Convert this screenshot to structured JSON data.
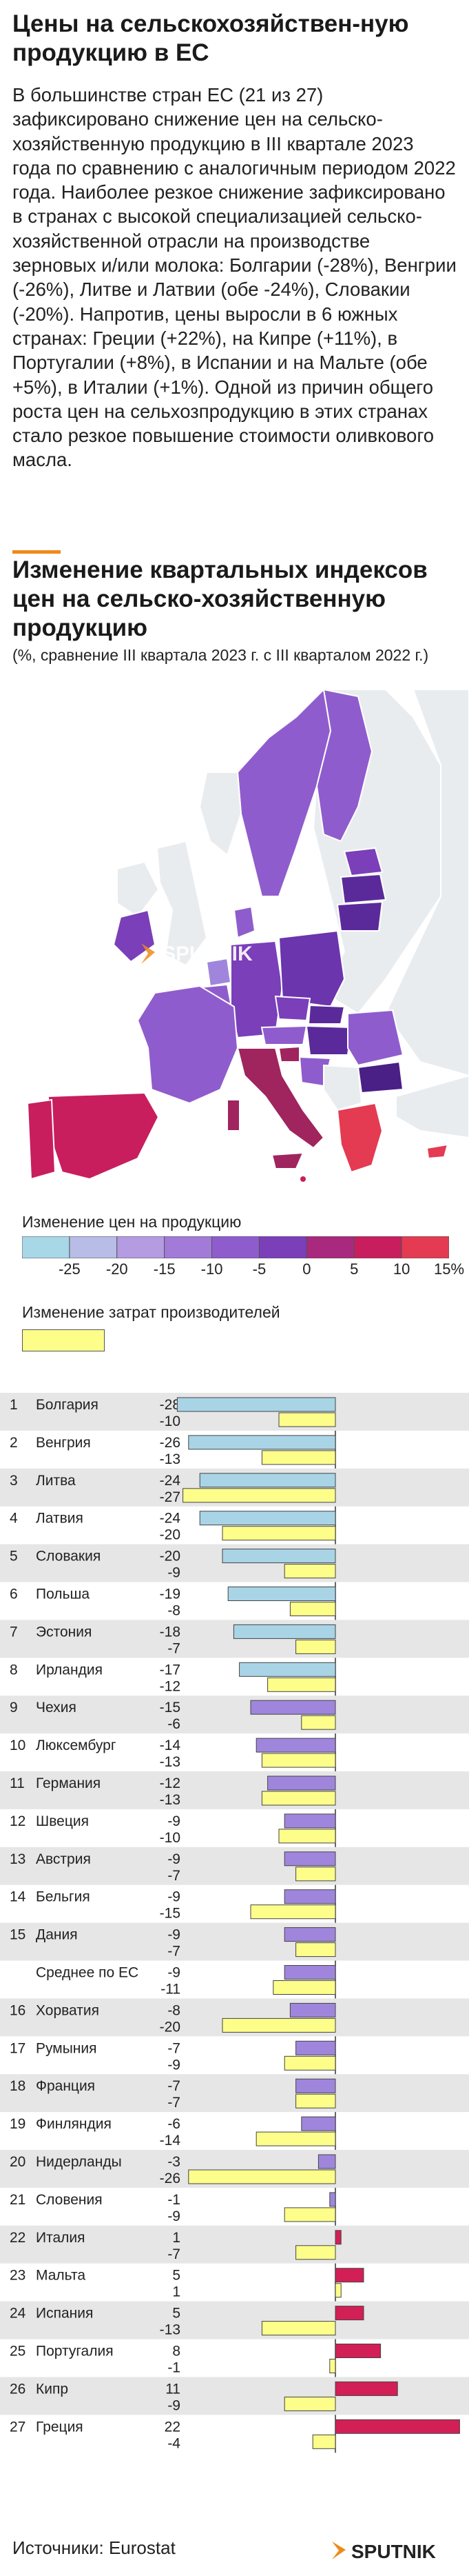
{
  "title": "Цены на сельскохозяйствен-ную продукцию в ЕС",
  "intro": "В большинстве стран ЕС (21 из 27) зафиксировано снижение цен на сельско-хозяйственную продукцию в III квартале 2023 года по сравнению с аналогичным периодом 2022 года. Наиболее резкое снижение зафиксировано в странах с высокой специализацией сельско-хозяйственной отрасли на производстве зерновых и/или молока:  Болгарии (-28%), Венгрии (-26%), Литве и Латвии (обе -24%), Словакии (-20%). Напротив, цены выросли в 6 южных странах: Греции (+22%), на Кипре (+11%), в Португалии (+8%), в Испании и на Мальте (обе +5%), в Италии (+1%). Одной из причин общего роста цен на сельхозпродукцию в этих странах стало резкое повышение стоимости оливкового масла.",
  "chart_title": "Изменение квартальных индексов цен на сельско-хозяйственную продукцию",
  "chart_subtitle": "(%, сравнение III квартала 2023 г. с III кварталом 2022 г.)",
  "watermark": "SPUTNIK",
  "legend": {
    "price_title": "Изменение цен на продукцию",
    "ticks": [
      "-25",
      "-20",
      "-15",
      "-10",
      "-5",
      "0",
      "5",
      "10",
      "15%"
    ],
    "scale_colors": [
      "#a8d8e8",
      "#b7bde6",
      "#b49be2",
      "#a27bd8",
      "#8f5ccd",
      "#7a3fb9",
      "#a9297f",
      "#c81e5e",
      "#e43a52"
    ],
    "cost_title": "Изменение затрат производителей"
  },
  "colors": {
    "price_negative": "#a8d4e6",
    "price_mid": "#9f86dc",
    "price_positive": "#d21f55",
    "cost": "#fdfd8a",
    "baseline": "#333333"
  },
  "chart_data": {
    "type": "bar",
    "orientation": "horizontal",
    "series": [
      {
        "name": "Изменение цен на продукцию"
      },
      {
        "name": "Изменение затрат производителей"
      }
    ],
    "rows": [
      {
        "rank": "1",
        "country": "Болгария",
        "price": -28,
        "cost": -10
      },
      {
        "rank": "2",
        "country": "Венгрия",
        "price": -26,
        "cost": -13
      },
      {
        "rank": "3",
        "country": "Литва",
        "price": -24,
        "cost": -27
      },
      {
        "rank": "4",
        "country": "Латвия",
        "price": -24,
        "cost": -20
      },
      {
        "rank": "5",
        "country": "Словакия",
        "price": -20,
        "cost": -9
      },
      {
        "rank": "6",
        "country": "Польша",
        "price": -19,
        "cost": -8
      },
      {
        "rank": "7",
        "country": "Эстония",
        "price": -18,
        "cost": -7
      },
      {
        "rank": "8",
        "country": "Ирландия",
        "price": -17,
        "cost": -12
      },
      {
        "rank": "9",
        "country": "Чехия",
        "price": -15,
        "cost": -6
      },
      {
        "rank": "10",
        "country": "Люксембург",
        "price": -14,
        "cost": -13
      },
      {
        "rank": "11",
        "country": "Германия",
        "price": -12,
        "cost": -13
      },
      {
        "rank": "12",
        "country": "Швеция",
        "price": -9,
        "cost": -10
      },
      {
        "rank": "13",
        "country": "Австрия",
        "price": -9,
        "cost": -7
      },
      {
        "rank": "14",
        "country": "Бельгия",
        "price": -9,
        "cost": -15
      },
      {
        "rank": "15",
        "country": "Дания",
        "price": -9,
        "cost": -7
      },
      {
        "rank": "",
        "country": "Среднее по ЕС",
        "price": -9,
        "cost": -11
      },
      {
        "rank": "16",
        "country": "Хорватия",
        "price": -8,
        "cost": -20
      },
      {
        "rank": "17",
        "country": "Румыния",
        "price": -7,
        "cost": -9
      },
      {
        "rank": "18",
        "country": "Франция",
        "price": -7,
        "cost": -7
      },
      {
        "rank": "19",
        "country": "Финляндия",
        "price": -6,
        "cost": -14
      },
      {
        "rank": "20",
        "country": "Нидерланды",
        "price": -3,
        "cost": -26
      },
      {
        "rank": "21",
        "country": "Словения",
        "price": -1,
        "cost": -9
      },
      {
        "rank": "22",
        "country": "Италия",
        "price": 1,
        "cost": -7
      },
      {
        "rank": "23",
        "country": "Мальта",
        "price": 5,
        "cost": 1
      },
      {
        "rank": "24",
        "country": "Испания",
        "price": 5,
        "cost": -13
      },
      {
        "rank": "25",
        "country": "Португалия",
        "price": 8,
        "cost": -1
      },
      {
        "rank": "26",
        "country": "Кипр",
        "price": 11,
        "cost": -9
      },
      {
        "rank": "27",
        "country": "Греция",
        "price": 22,
        "cost": -4
      }
    ]
  },
  "source": "Источники: Eurostat",
  "logo_text": "SPUTNIK"
}
